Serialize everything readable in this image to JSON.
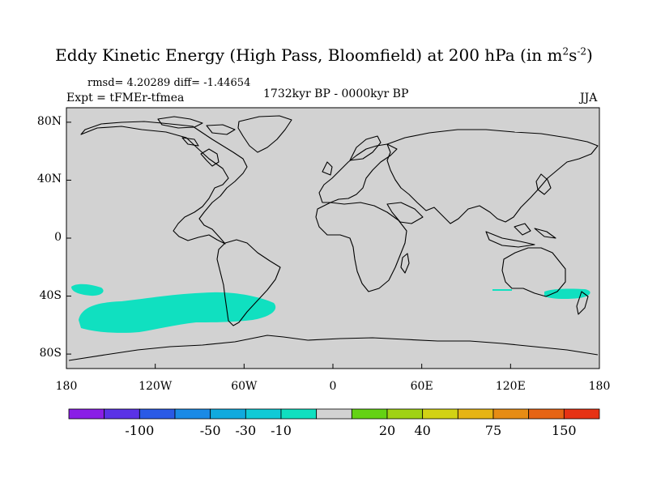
{
  "header": {
    "title_main": "Eddy Kinetic Energy (High Pass, Bloomfield) at 200 hPa (in m",
    "title_sup1": "2",
    "title_s": "s",
    "title_sup2": "-2",
    "title_end": ")",
    "stats": "rmsd= 4.20289 diff= -1.44654",
    "experiment": "Expt = tFMEr-tfmea",
    "period": "1732kyr BP - 0000kyr BP",
    "season": "JJA"
  },
  "axes": {
    "lat_labels": [
      "80N",
      "40N",
      "0",
      "40S",
      "80S"
    ],
    "lat_values": [
      80,
      40,
      0,
      -40,
      -80
    ],
    "lon_labels": [
      "180",
      "120W",
      "60W",
      "0",
      "60E",
      "120E",
      "180"
    ],
    "lon_values": [
      -180,
      -120,
      -60,
      0,
      60,
      120,
      180
    ]
  },
  "colorbar": {
    "colors": [
      "#8a1ee6",
      "#5a32e6",
      "#2a5ae6",
      "#1a8ae6",
      "#10aade",
      "#10cad6",
      "#10e0c0",
      "#d2d2d2",
      "#64d214",
      "#a0d214",
      "#d2d214",
      "#e6b414",
      "#e68c14",
      "#e66414",
      "#e63214"
    ],
    "labels": [
      "-100",
      "-50",
      "-30",
      "-10",
      "20",
      "40",
      "75",
      "150"
    ]
  },
  "colors": {
    "background_field": "#d2d2d2",
    "negative_anomaly": "#10e0c0",
    "coastline": "#000000"
  }
}
